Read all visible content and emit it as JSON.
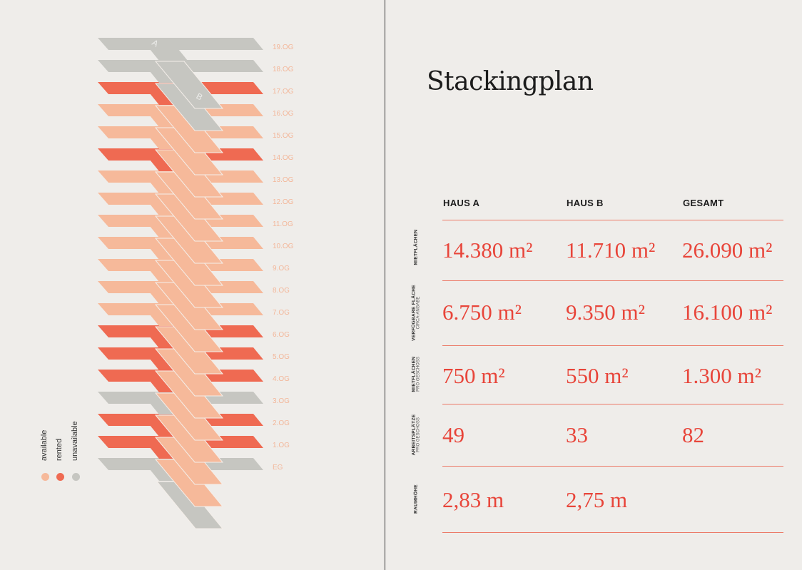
{
  "colors": {
    "available": "#f6b99a",
    "rented": "#ef6a52",
    "unavailable": "#c6c6c1",
    "label": "#f3b79a",
    "accent": "#e8453a"
  },
  "wing_labels": {
    "a": "A",
    "b": "B"
  },
  "floors": [
    {
      "label": "19.OG",
      "a": "unavailable",
      "b": null
    },
    {
      "label": "18.OG",
      "a": "unavailable",
      "b": "unavailable"
    },
    {
      "label": "17.OG",
      "a": "rented",
      "b": "unavailable"
    },
    {
      "label": "16.OG",
      "a": "available",
      "b": "available"
    },
    {
      "label": "15.OG",
      "a": "available",
      "b": "available"
    },
    {
      "label": "14.OG",
      "a": "rented",
      "b": "available"
    },
    {
      "label": "13.OG",
      "a": "available",
      "b": "available"
    },
    {
      "label": "12.OG",
      "a": "available",
      "b": "available"
    },
    {
      "label": "11.OG",
      "a": "available",
      "b": "available"
    },
    {
      "label": "10.OG",
      "a": "available",
      "b": "available"
    },
    {
      "label": "9.OG",
      "a": "available",
      "b": "available"
    },
    {
      "label": "8.OG",
      "a": "available",
      "b": "available"
    },
    {
      "label": "7.OG",
      "a": "available",
      "b": "available"
    },
    {
      "label": "6.OG",
      "a": "rented",
      "b": "available"
    },
    {
      "label": "5.OG",
      "a": "rented",
      "b": "available"
    },
    {
      "label": "4.OG",
      "a": "rented",
      "b": "available"
    },
    {
      "label": "3.OG",
      "a": "unavailable",
      "b": "available"
    },
    {
      "label": "2.OG",
      "a": "rented",
      "b": "available"
    },
    {
      "label": "1.OG",
      "a": "rented",
      "b": "available"
    },
    {
      "label": "EG",
      "a": "unavailable",
      "b": "available"
    }
  ],
  "legend": [
    {
      "label": "available",
      "status": "available"
    },
    {
      "label": "rented",
      "status": "rented"
    },
    {
      "label": "unavailable",
      "status": "unavailable"
    }
  ],
  "title": "Stackingplan",
  "table": {
    "headers": [
      "HAUS A",
      "HAUS B",
      "GESAMT"
    ],
    "rows": [
      {
        "label": "MIETFLÄCHEN",
        "sub": "",
        "values": [
          "14.380 m²",
          "11.710 m²",
          "26.090 m²"
        ]
      },
      {
        "label": "VERFÜGBARE FLÄCHE",
        "sub": "CIRCA-ANGABE",
        "values": [
          "6.750 m²",
          "9.350 m²",
          "16.100 m²"
        ]
      },
      {
        "label": "MIETFLÄCHEN",
        "sub": "PRO GESCHOSS",
        "values": [
          "750 m²",
          "550 m²",
          "1.300 m²"
        ]
      },
      {
        "label": "ARBEITSPLÄTZE",
        "sub": "PRO GESCHOSS",
        "values": [
          "49",
          "33",
          "82"
        ]
      },
      {
        "label": "RAUMHÖHE",
        "sub": "",
        "values": [
          "2,83 m",
          "2,75 m",
          ""
        ]
      }
    ]
  }
}
